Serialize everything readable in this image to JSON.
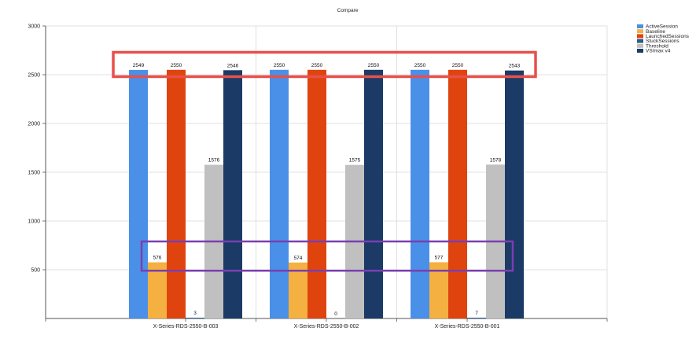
{
  "chart_data": {
    "type": "bar",
    "title": "Compare",
    "xlabel": "",
    "ylabel": "",
    "ylim": [
      0,
      3000
    ],
    "yticks": [
      500,
      1000,
      1500,
      2000,
      2500,
      3000
    ],
    "grid": true,
    "legend_position": "top-right",
    "categories": [
      "X-Series-RDS-2550-B-003",
      "X-Series-RDS-2550-B-002",
      "X-Series-RDS-2550-B-001"
    ],
    "series": [
      {
        "name": "ActiveSession",
        "color": "#4a90e8",
        "values": [
          2549,
          2550,
          2550
        ],
        "labels": [
          "2549",
          "2550",
          "2550"
        ]
      },
      {
        "name": "Baseline",
        "color": "#f5b042",
        "values": [
          576,
          574,
          577
        ],
        "labels": [
          "576",
          "574",
          "577"
        ]
      },
      {
        "name": "LaunchedSessions",
        "color": "#e0440e",
        "values": [
          2550,
          2550,
          2550
        ],
        "labels": [
          "2550",
          "2550",
          "2550"
        ]
      },
      {
        "name": "StuckSessions",
        "color": "#2e5a87",
        "values": [
          3,
          0,
          7
        ],
        "labels": [
          "3",
          "0",
          "7"
        ]
      },
      {
        "name": "Threshold",
        "color": "#c0c0c0",
        "values": [
          1576,
          1575,
          1578
        ],
        "labels": [
          "1576",
          "1575",
          "1578"
        ]
      },
      {
        "name": "VSImax v4",
        "color": "#1b3a66",
        "values": [
          2546,
          2550,
          2543
        ],
        "labels": [
          "2546",
          "2550",
          "2543"
        ]
      }
    ],
    "annotations": [
      {
        "type": "highlight-box",
        "color": "#e8504a",
        "range": [
          2480,
          2730
        ],
        "from_category": 0,
        "to_category": 2
      },
      {
        "type": "highlight-box",
        "color": "#7a3fb0",
        "range": [
          490,
          790
        ],
        "from_category": 0,
        "to_category": 2
      }
    ]
  }
}
